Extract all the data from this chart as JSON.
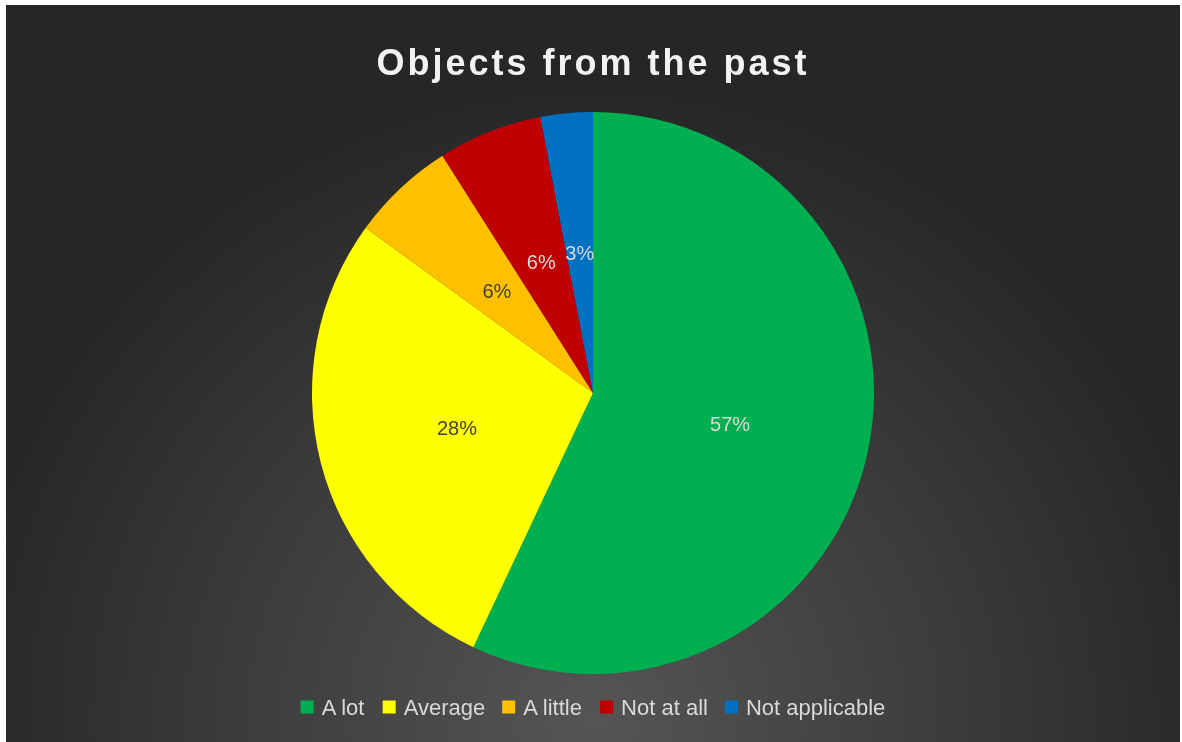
{
  "chart_data": {
    "type": "pie",
    "title": "Objects from the past",
    "categories": [
      "A lot",
      "Average",
      "A little",
      "Not at all",
      "Not applicable"
    ],
    "values": [
      57,
      28,
      6,
      6,
      3
    ],
    "colors": [
      "#00b050",
      "#ffff00",
      "#ffc000",
      "#c00000",
      "#0070c0"
    ],
    "value_labels": [
      "57%",
      "28%",
      "6%",
      "6%",
      "3%"
    ],
    "legend": "bottom"
  }
}
